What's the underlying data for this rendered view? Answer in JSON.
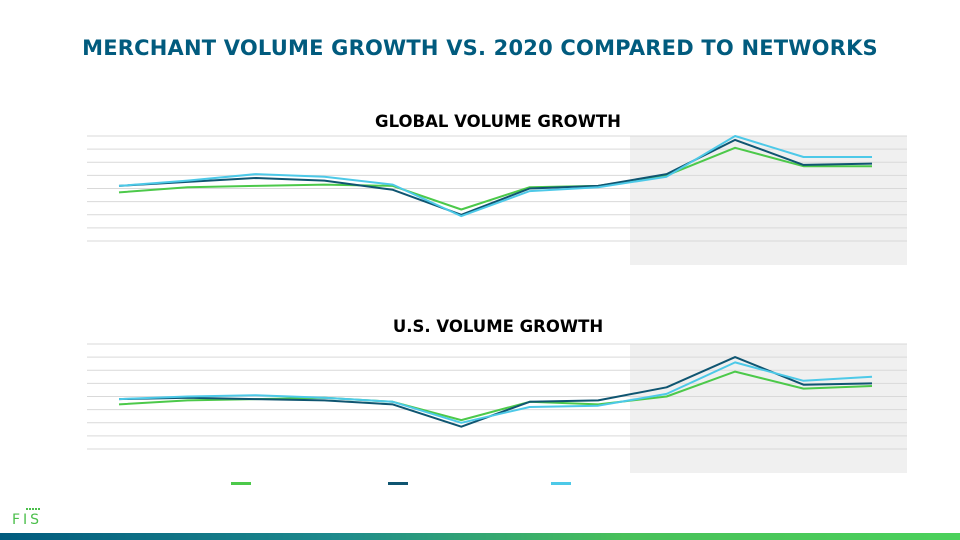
{
  "slide": {
    "title": "MERCHANT VOLUME GROWTH VS. 2020 COMPARED TO NETWORKS"
  },
  "colors": {
    "title": "#015b7e",
    "series_green": "#4cc94a",
    "series_navy": "#0f5571",
    "series_cyan": "#4dc9e8",
    "highlight_band": "#f0f0f0",
    "gridline": "#d9d9d9"
  },
  "logo": {
    "text": "FIS"
  },
  "chart_data": [
    {
      "type": "line",
      "title": "GLOBAL VOLUME GROWTH",
      "x": [
        1,
        2,
        3,
        4,
        5,
        6,
        7,
        8,
        9,
        10,
        11,
        12
      ],
      "ylim": [
        0,
        8
      ],
      "grid": true,
      "gridlines": 8,
      "highlight_from_index": 8,
      "series": [
        {
          "color": "series_green",
          "values": [
            3.7,
            4.1,
            4.2,
            4.3,
            4.2,
            2.4,
            4.1,
            4.2,
            5.0,
            7.1,
            5.7,
            5.7
          ]
        },
        {
          "color": "series_navy",
          "values": [
            4.2,
            4.5,
            4.8,
            4.6,
            3.9,
            2.0,
            4.0,
            4.2,
            5.1,
            7.7,
            5.8,
            5.9
          ]
        },
        {
          "color": "series_cyan",
          "values": [
            4.2,
            4.6,
            5.1,
            4.9,
            4.3,
            1.9,
            3.8,
            4.1,
            4.9,
            8.0,
            6.4,
            6.4
          ]
        }
      ]
    },
    {
      "type": "line",
      "title": "U.S. VOLUME GROWTH",
      "x": [
        1,
        2,
        3,
        4,
        5,
        6,
        7,
        8,
        9,
        10,
        11,
        12
      ],
      "ylim": [
        0,
        8
      ],
      "grid": true,
      "gridlines": 8,
      "highlight_from_index": 8,
      "series": [
        {
          "color": "series_green",
          "values": [
            3.4,
            3.7,
            3.8,
            3.9,
            3.6,
            2.2,
            3.6,
            3.4,
            4.0,
            5.9,
            4.6,
            4.8
          ]
        },
        {
          "color": "series_navy",
          "values": [
            3.8,
            3.9,
            3.8,
            3.7,
            3.4,
            1.7,
            3.6,
            3.7,
            4.7,
            7.0,
            4.9,
            5.0
          ]
        },
        {
          "color": "series_cyan",
          "values": [
            3.8,
            4.0,
            4.1,
            3.9,
            3.6,
            2.0,
            3.2,
            3.3,
            4.2,
            6.6,
            5.2,
            5.5
          ]
        }
      ]
    }
  ],
  "legend": [
    {
      "color": "series_green"
    },
    {
      "color": "series_navy"
    },
    {
      "color": "series_cyan"
    }
  ]
}
